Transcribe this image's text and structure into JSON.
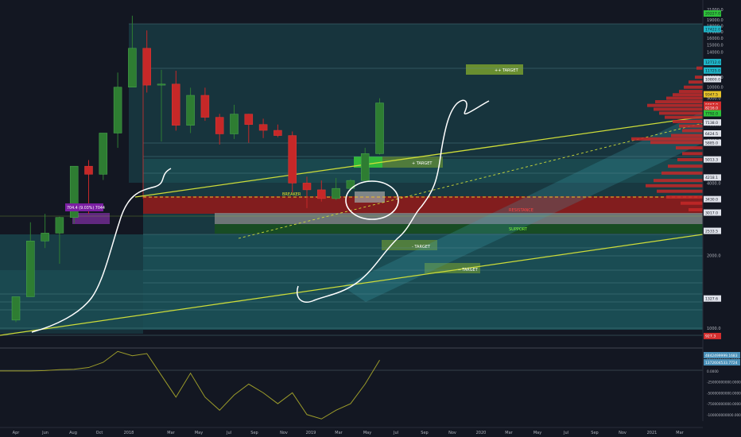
{
  "chart_data": [
    {
      "type": "candlestick",
      "title": "",
      "y_scale": "log",
      "ylim": [
        700,
        21500
      ],
      "x_tick_labels": [
        "Apr",
        "Jun",
        "Aug",
        "Oct",
        "2018",
        "Mar",
        "May",
        "Jul",
        "Sep",
        "Nov",
        "2019",
        "Mar",
        "May",
        "Jul",
        "Sep",
        "Nov",
        "2020",
        "Mar",
        "May",
        "Jul",
        "Sep",
        "Nov",
        "2021",
        "Mar"
      ],
      "y_tick_labels": [
        "21000.0",
        "19000.0",
        "18000.0",
        "17000.0",
        "16000.0",
        "15000.0",
        "14000.0",
        "11000.0",
        "10000.0",
        "9000.0",
        "8000.0",
        "7000.0",
        "6000.0",
        "5000.0",
        "4000.0",
        "3000.0",
        "2000.0",
        "1000.0"
      ],
      "price_labels": [
        {
          "text": "20227.0",
          "value": 20227,
          "color": "#2ec23a"
        },
        {
          "text": "17422.0",
          "value": 17422,
          "color": "#1fb6c9"
        },
        {
          "text": "12712.0",
          "value": 12712,
          "color": "#1fb6c9"
        },
        {
          "text": "11725.0",
          "value": 11725,
          "color": "#1fb6c9"
        },
        {
          "text": "10800.0",
          "value": 10800,
          "color": "#e0e3eb"
        },
        {
          "text": "9347.5",
          "value": 9347.5,
          "color": "#e6c229"
        },
        {
          "text": "8467.0",
          "value": 8467,
          "color": "#d32f2f"
        },
        {
          "text": "8216.0",
          "value": 8216,
          "color": "#d32f2f"
        },
        {
          "text": "7792.0",
          "value": 7792,
          "color": "#2ec23a"
        },
        {
          "text": "7138.0",
          "value": 7138,
          "color": "#e0e3eb"
        },
        {
          "text": "6424.5",
          "value": 6424.5,
          "color": "#e0e3eb"
        },
        {
          "text": "5885.0",
          "value": 5885,
          "color": "#e0e3eb"
        },
        {
          "text": "5013.3",
          "value": 5013.3,
          "color": "#e0e3eb"
        },
        {
          "text": "4218.1",
          "value": 4218.1,
          "color": "#e0e3eb"
        },
        {
          "text": "3430.0",
          "value": 3430,
          "color": "#e0e3eb"
        },
        {
          "text": "3017.0",
          "value": 3017,
          "color": "#e0e3eb"
        },
        {
          "text": "2533.5",
          "value": 2533.5,
          "color": "#e0e3eb"
        },
        {
          "text": "1327.6",
          "value": 1327.6,
          "color": "#e0e3eb"
        },
        {
          "text": "927.3",
          "value": 927.3,
          "color": "#d32f2f"
        }
      ],
      "candles": [
        {
          "month": "2017-04",
          "open": 1080,
          "high": 1350,
          "low": 1060,
          "close": 1350
        },
        {
          "month": "2017-05",
          "open": 1350,
          "high": 2750,
          "low": 1350,
          "close": 2300
        },
        {
          "month": "2017-06",
          "open": 2300,
          "high": 2980,
          "low": 2150,
          "close": 2480
        },
        {
          "month": "2017-07",
          "open": 2480,
          "high": 2900,
          "low": 1850,
          "close": 2880
        },
        {
          "month": "2017-08",
          "open": 2880,
          "high": 4650,
          "low": 2720,
          "close": 4700
        },
        {
          "month": "2017-09",
          "open": 4700,
          "high": 4980,
          "low": 2980,
          "close": 4350
        },
        {
          "month": "2017-10",
          "open": 4350,
          "high": 6450,
          "low": 4120,
          "close": 6450
        },
        {
          "month": "2017-11",
          "open": 6450,
          "high": 11500,
          "low": 5600,
          "close": 10000
        },
        {
          "month": "2017-12",
          "open": 10000,
          "high": 19800,
          "low": 10000,
          "close": 14500
        },
        {
          "month": "2018-01",
          "open": 14500,
          "high": 17200,
          "low": 9500,
          "close": 10200
        },
        {
          "month": "2018-02",
          "open": 10200,
          "high": 11800,
          "low": 5950,
          "close": 10300
        },
        {
          "month": "2018-03",
          "open": 10300,
          "high": 11700,
          "low": 6600,
          "close": 6950
        },
        {
          "month": "2018-04",
          "open": 6950,
          "high": 9950,
          "low": 6450,
          "close": 9250
        },
        {
          "month": "2018-05",
          "open": 9250,
          "high": 9950,
          "low": 7250,
          "close": 7500
        },
        {
          "month": "2018-06",
          "open": 7500,
          "high": 7750,
          "low": 5780,
          "close": 6400
        },
        {
          "month": "2018-07",
          "open": 6400,
          "high": 8450,
          "low": 6100,
          "close": 7730
        },
        {
          "month": "2018-08",
          "open": 7730,
          "high": 7750,
          "low": 5880,
          "close": 7000
        },
        {
          "month": "2018-09",
          "open": 7000,
          "high": 7400,
          "low": 6150,
          "close": 6620
        },
        {
          "month": "2018-10",
          "open": 6620,
          "high": 7000,
          "low": 6200,
          "close": 6300
        },
        {
          "month": "2018-11",
          "open": 6300,
          "high": 6550,
          "low": 3650,
          "close": 4000
        },
        {
          "month": "2018-12",
          "open": 4000,
          "high": 4250,
          "low": 3150,
          "close": 3750
        },
        {
          "month": "2019-01",
          "open": 3750,
          "high": 4100,
          "low": 3350,
          "close": 3450
        },
        {
          "month": "2019-02",
          "open": 3450,
          "high": 4200,
          "low": 3400,
          "close": 3800
        },
        {
          "month": "2019-03",
          "open": 3800,
          "high": 4150,
          "low": 3700,
          "close": 4100
        },
        {
          "month": "2019-04",
          "open": 4100,
          "high": 5600,
          "low": 4050,
          "close": 5300
        },
        {
          "month": "2019-05",
          "open": 5300,
          "high": 9000,
          "low": 5250,
          "close": 8600
        }
      ],
      "annotations": [
        {
          "text": "++ TARGET",
          "color": "#ffffff"
        },
        {
          "text": "+ TARGET",
          "color": "#ffffff"
        },
        {
          "text": "BREAKER",
          "color": "#e6e629"
        },
        {
          "text": "RESISTANCE",
          "color": "#ff4444"
        },
        {
          "text": "SUPPORT",
          "color": "#7fff3a"
        },
        {
          "text": "- TARGET",
          "color": "#ffffff"
        },
        {
          "text": "-- TARGET",
          "color": "#ffffff"
        }
      ],
      "measure_label": "704.4 (9.03%) 7044",
      "colors": {
        "up": "#2e7d32",
        "down": "#c62828",
        "zone_teal": "#1b5e63",
        "resistance": "#b71c1c",
        "support": "#1b5e20",
        "trendline": "#cddc39"
      }
    },
    {
      "type": "line",
      "title": "",
      "indicator_labels": [
        {
          "text": "4842499999.1683",
          "color": "#4a90b8"
        },
        {
          "text": "1372604533.7724",
          "color": "#4a90b8"
        }
      ],
      "y_tick_labels": [
        "25000000000.0000",
        "0.0000",
        "-25000000000.0000",
        "-50000000000.0000",
        "-75000000000.0000",
        "-100000000000.0000"
      ],
      "x": [
        "2017-04",
        "2017-05",
        "2017-06",
        "2017-07",
        "2017-08",
        "2017-09",
        "2017-10",
        "2017-11",
        "2017-12",
        "2018-01",
        "2018-02",
        "2018-03",
        "2018-04",
        "2018-05",
        "2018-06",
        "2018-07",
        "2018-08",
        "2018-09",
        "2018-10",
        "2018-11",
        "2018-12",
        "2019-01",
        "2019-02",
        "2019-03",
        "2019-04",
        "2019-05"
      ],
      "series": [
        {
          "values": [
            0,
            0,
            1000000000,
            3000000000,
            4000000000,
            8000000000,
            20000000000,
            45000000000,
            35000000000,
            40000000000,
            -10000000000,
            -60000000000,
            -5000000000,
            -60000000000,
            -90000000000,
            -55000000000,
            -30000000000,
            -50000000000,
            -75000000000,
            -50000000000,
            -100000000000,
            -110000000000,
            -90000000000,
            -75000000000,
            -30000000000,
            25000000000
          ],
          "color": "#9c9c2a"
        }
      ]
    }
  ]
}
